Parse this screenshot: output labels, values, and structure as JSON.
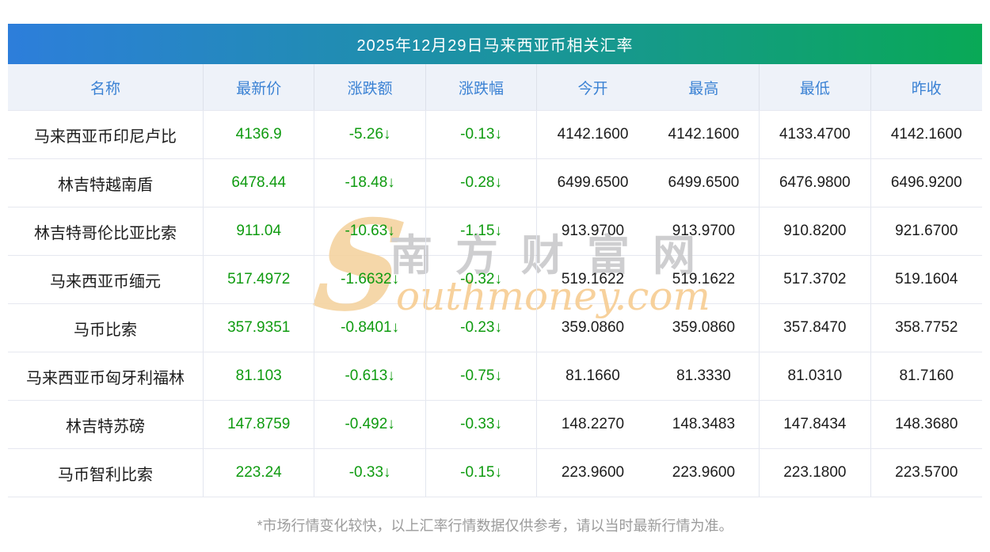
{
  "banner": {
    "title": "2025年12月29日马来西亚币相关汇率",
    "gradient_left": "#2d7edb",
    "gradient_right": "#09a956"
  },
  "columns": [
    "名称",
    "最新价",
    "涨跌额",
    "涨跌幅",
    "今开",
    "最高",
    "最低",
    "昨收"
  ],
  "rows": [
    {
      "name": "马来西亚币印尼卢比",
      "latest": "4136.9",
      "change": "-5.26↓",
      "pct": "-0.13↓",
      "open": "4142.1600",
      "high": "4142.1600",
      "low": "4133.4700",
      "prev": "4142.1600"
    },
    {
      "name": "林吉特越南盾",
      "latest": "6478.44",
      "change": "-18.48↓",
      "pct": "-0.28↓",
      "open": "6499.6500",
      "high": "6499.6500",
      "low": "6476.9800",
      "prev": "6496.9200"
    },
    {
      "name": "林吉特哥伦比亚比索",
      "latest": "911.04",
      "change": "-10.63↓",
      "pct": "-1.15↓",
      "open": "913.9700",
      "high": "913.9700",
      "low": "910.8200",
      "prev": "921.6700"
    },
    {
      "name": "马来西亚币缅元",
      "latest": "517.4972",
      "change": "-1.6632↓",
      "pct": "-0.32↓",
      "open": "519.1622",
      "high": "519.1622",
      "low": "517.3702",
      "prev": "519.1604"
    },
    {
      "name": "马币比索",
      "latest": "357.9351",
      "change": "-0.8401↓",
      "pct": "-0.23↓",
      "open": "359.0860",
      "high": "359.0860",
      "low": "357.8470",
      "prev": "358.7752"
    },
    {
      "name": "马来西亚币匈牙利福林",
      "latest": "81.103",
      "change": "-0.613↓",
      "pct": "-0.75↓",
      "open": "81.1660",
      "high": "81.3330",
      "low": "81.0310",
      "prev": "81.7160"
    },
    {
      "name": "林吉特苏磅",
      "latest": "147.8759",
      "change": "-0.492↓",
      "pct": "-0.33↓",
      "open": "148.2270",
      "high": "148.3483",
      "low": "147.8434",
      "prev": "148.3680"
    },
    {
      "name": "马币智利比索",
      "latest": "223.24",
      "change": "-0.33↓",
      "pct": "-0.15↓",
      "open": "223.9600",
      "high": "223.9600",
      "low": "223.1800",
      "prev": "223.5700"
    }
  ],
  "footer": {
    "note": "*市场行情变化较快，以上汇率行情数据仅供参考，请以当时最新行情为准。"
  },
  "watermark": {
    "s": "S",
    "cn": "南方财富网",
    "en": "outhmoney.com"
  },
  "colors": {
    "down_green": "#0f9b10",
    "header_text_blue": "#3b82d4",
    "header_bg": "#eef2f9"
  }
}
